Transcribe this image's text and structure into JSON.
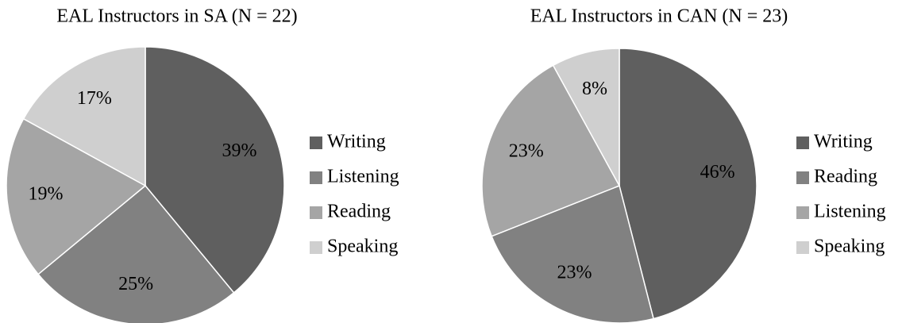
{
  "chart_data": [
    {
      "type": "pie",
      "title": "EAL Instructors in SA (N = 22)",
      "categories": [
        "Writing",
        "Listening",
        "Reading",
        "Speaking"
      ],
      "values": [
        39,
        25,
        19,
        17
      ],
      "value_labels": [
        "39%",
        "25%",
        "19%",
        "17%"
      ],
      "colors": [
        "#5f5f5f",
        "#818181",
        "#a5a5a5",
        "#cfcfcf"
      ],
      "legend": "right"
    },
    {
      "type": "pie",
      "title": "EAL Instructors in CAN (N = 23)",
      "categories": [
        "Writing",
        "Reading",
        "Listening",
        "Speaking"
      ],
      "values": [
        46,
        23,
        23,
        8
      ],
      "value_labels": [
        "46%",
        "23%",
        "23%",
        "8%"
      ],
      "colors": [
        "#5f5f5f",
        "#818181",
        "#a5a5a5",
        "#cfcfcf"
      ],
      "legend": "right"
    }
  ]
}
